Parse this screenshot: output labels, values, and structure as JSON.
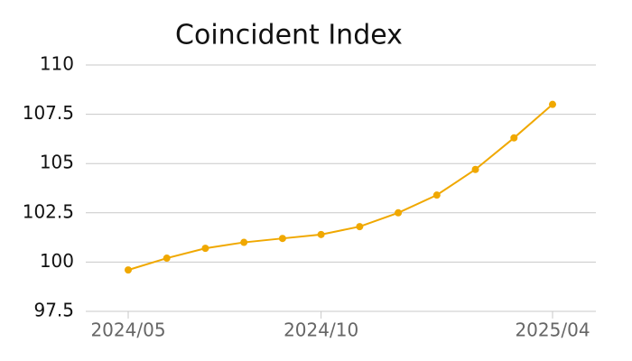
{
  "chart_data": {
    "type": "line",
    "title": "Coincident Index",
    "categories": [
      "2024/05",
      null,
      null,
      null,
      null,
      "2024/10",
      null,
      null,
      null,
      null,
      null,
      "2025/04"
    ],
    "series": [
      {
        "name": "Coincident Index",
        "color": "#f0a800",
        "values": [
          99.6,
          100.2,
          100.7,
          101.0,
          101.2,
          101.4,
          101.8,
          102.5,
          103.4,
          104.7,
          106.3,
          108.0
        ]
      }
    ],
    "ylim": [
      97.5,
      110
    ],
    "yticks": [
      97.5,
      100,
      102.5,
      105,
      107.5,
      110
    ],
    "grid": true
  }
}
